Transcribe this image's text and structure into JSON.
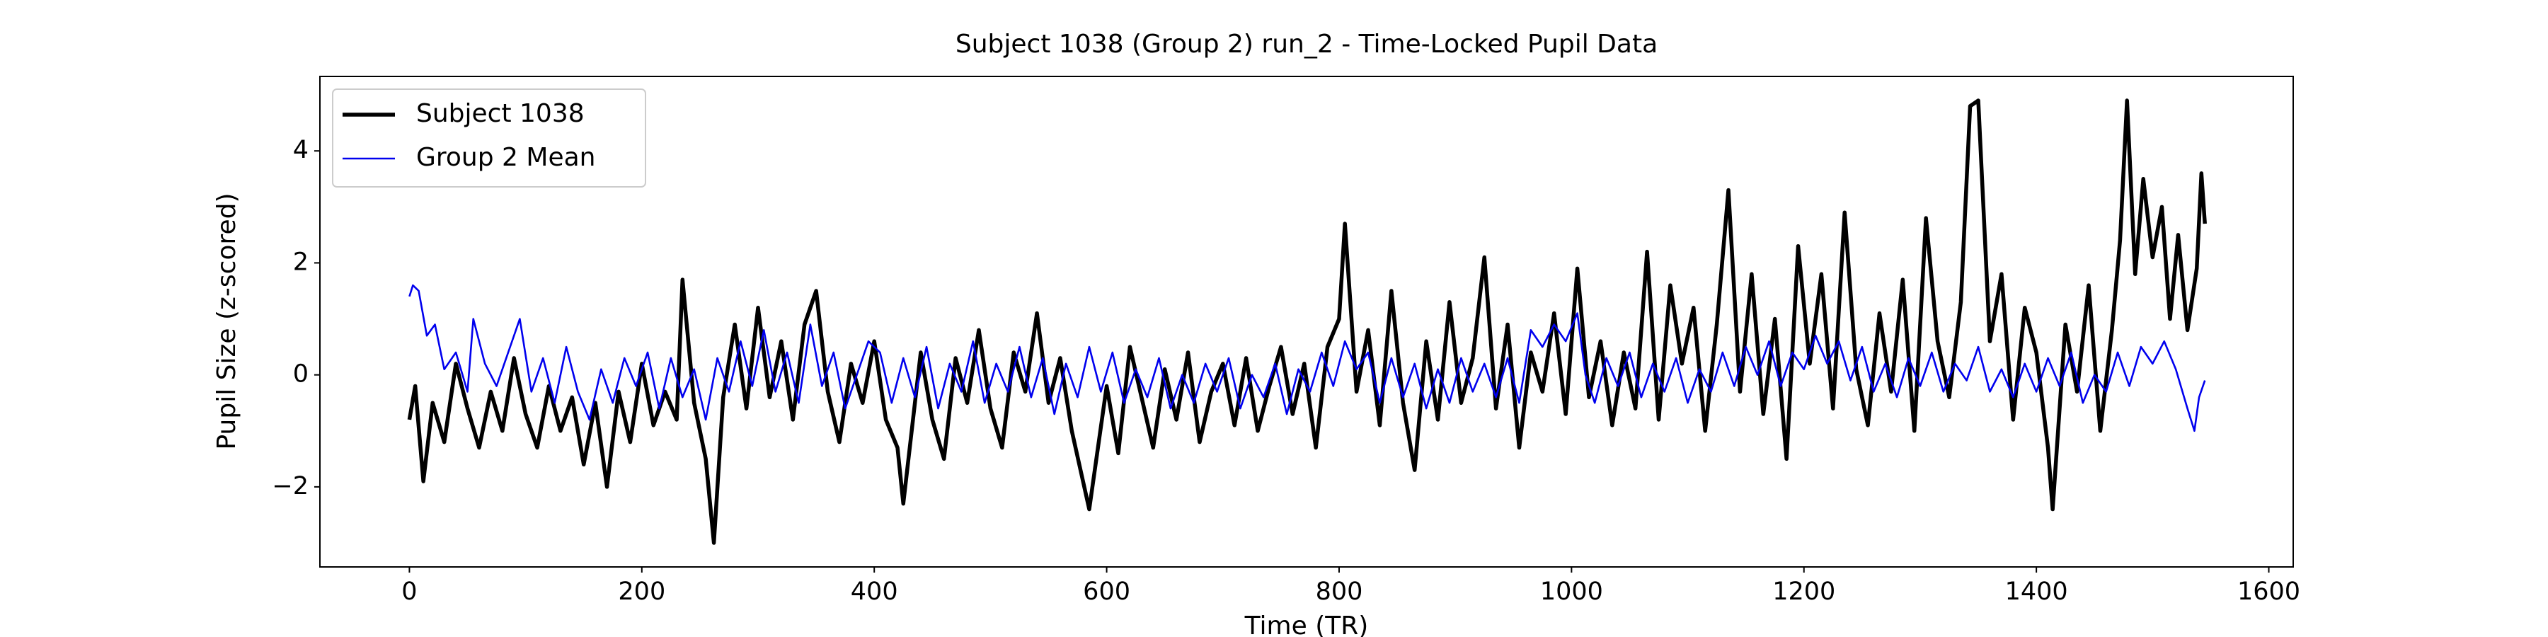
{
  "chart_data": {
    "type": "line",
    "title": "Subject 1038 (Group 2) run_2 - Time-Locked Pupil Data",
    "x_label": "Time (TR)",
    "y_label": "Pupil Size (z-scored)",
    "xlim": [
      -77,
      1621
    ],
    "ylim": [
      -3.43,
      5.33
    ],
    "xticks": [
      0,
      200,
      400,
      600,
      800,
      1000,
      1200,
      1400,
      1600
    ],
    "yticks": [
      {
        "value": -2,
        "label": "−2"
      },
      0,
      2,
      4
    ],
    "legend": "upper left",
    "series": [
      {
        "name": "Subject 1038",
        "color": "#000000",
        "x": [
          0,
          5,
          12,
          20,
          30,
          40,
          50,
          60,
          70,
          80,
          90,
          100,
          110,
          120,
          130,
          140,
          150,
          160,
          170,
          180,
          190,
          200,
          210,
          220,
          230,
          235,
          245,
          255,
          262,
          270,
          280,
          290,
          300,
          310,
          320,
          330,
          340,
          350,
          360,
          370,
          380,
          390,
          400,
          410,
          420,
          425,
          440,
          450,
          460,
          470,
          480,
          490,
          500,
          510,
          520,
          530,
          540,
          550,
          560,
          570,
          585,
          600,
          610,
          620,
          630,
          640,
          650,
          660,
          670,
          680,
          690,
          700,
          710,
          720,
          730,
          740,
          750,
          760,
          770,
          780,
          790,
          800,
          805,
          815,
          825,
          835,
          845,
          855,
          865,
          875,
          885,
          895,
          905,
          915,
          925,
          935,
          945,
          955,
          965,
          975,
          985,
          995,
          1005,
          1015,
          1025,
          1035,
          1045,
          1055,
          1065,
          1075,
          1085,
          1095,
          1105,
          1115,
          1125,
          1135,
          1145,
          1155,
          1165,
          1175,
          1185,
          1195,
          1205,
          1215,
          1225,
          1235,
          1245,
          1255,
          1265,
          1275,
          1285,
          1295,
          1305,
          1315,
          1325,
          1335,
          1343,
          1350,
          1360,
          1370,
          1380,
          1390,
          1400,
          1410,
          1414,
          1425,
          1435,
          1445,
          1455,
          1465,
          1472,
          1478,
          1485,
          1492,
          1500,
          1508,
          1515,
          1522,
          1530,
          1538,
          1542,
          1545
        ],
        "values": [
          -0.8,
          -0.2,
          -1.9,
          -0.5,
          -1.2,
          0.2,
          -0.6,
          -1.3,
          -0.3,
          -1.0,
          0.3,
          -0.7,
          -1.3,
          -0.2,
          -1.0,
          -0.4,
          -1.6,
          -0.5,
          -2.0,
          -0.3,
          -1.2,
          0.2,
          -0.9,
          -0.3,
          -0.8,
          1.7,
          -0.5,
          -1.5,
          -3.0,
          -0.4,
          0.9,
          -0.6,
          1.2,
          -0.4,
          0.6,
          -0.8,
          0.9,
          1.5,
          -0.3,
          -1.2,
          0.2,
          -0.5,
          0.6,
          -0.8,
          -1.3,
          -2.3,
          0.4,
          -0.8,
          -1.5,
          0.3,
          -0.5,
          0.8,
          -0.6,
          -1.3,
          0.4,
          -0.3,
          1.1,
          -0.5,
          0.3,
          -1.0,
          -2.4,
          -0.2,
          -1.4,
          0.5,
          -0.4,
          -1.3,
          0.1,
          -0.8,
          0.4,
          -1.2,
          -0.3,
          0.2,
          -0.9,
          0.3,
          -1.0,
          -0.2,
          0.5,
          -0.7,
          0.2,
          -1.3,
          0.5,
          1.0,
          2.7,
          -0.3,
          0.8,
          -0.9,
          1.5,
          -0.5,
          -1.7,
          0.6,
          -0.8,
          1.3,
          -0.5,
          0.3,
          2.1,
          -0.6,
          0.9,
          -1.3,
          0.4,
          -0.3,
          1.1,
          -0.7,
          1.9,
          -0.4,
          0.6,
          -0.9,
          0.4,
          -0.6,
          2.2,
          -0.8,
          1.6,
          0.2,
          1.2,
          -1.0,
          0.9,
          3.3,
          -0.3,
          1.8,
          -0.7,
          1.0,
          -1.5,
          2.3,
          0.2,
          1.8,
          -0.6,
          2.9,
          0.1,
          -0.9,
          1.1,
          -0.3,
          1.7,
          -1.0,
          2.8,
          0.6,
          -0.4,
          1.3,
          4.8,
          4.9,
          0.6,
          1.8,
          -0.8,
          1.2,
          0.4,
          -1.3,
          -2.4,
          0.9,
          -0.3,
          1.6,
          -1.0,
          0.8,
          2.4,
          4.9,
          1.8,
          3.5,
          2.1,
          3.0,
          1.0,
          2.5,
          0.8,
          1.9,
          3.6,
          2.7
        ]
      },
      {
        "name": "Group 2 Mean",
        "color": "#0000ee",
        "x": [
          0,
          3,
          8,
          15,
          22,
          30,
          40,
          50,
          55,
          65,
          75,
          85,
          95,
          105,
          115,
          125,
          135,
          145,
          155,
          165,
          175,
          185,
          195,
          205,
          215,
          225,
          235,
          245,
          255,
          265,
          275,
          285,
          295,
          305,
          315,
          325,
          335,
          345,
          355,
          365,
          375,
          385,
          395,
          405,
          415,
          425,
          435,
          445,
          455,
          465,
          475,
          485,
          495,
          505,
          515,
          525,
          535,
          545,
          555,
          565,
          575,
          585,
          595,
          605,
          615,
          625,
          635,
          645,
          655,
          665,
          675,
          685,
          695,
          705,
          715,
          725,
          735,
          745,
          755,
          765,
          775,
          785,
          795,
          805,
          815,
          825,
          835,
          845,
          855,
          865,
          875,
          885,
          895,
          905,
          915,
          925,
          935,
          945,
          955,
          965,
          975,
          985,
          995,
          1005,
          1012,
          1020,
          1030,
          1040,
          1050,
          1060,
          1070,
          1080,
          1090,
          1100,
          1110,
          1120,
          1130,
          1140,
          1150,
          1160,
          1170,
          1180,
          1190,
          1200,
          1210,
          1220,
          1230,
          1240,
          1250,
          1260,
          1270,
          1280,
          1290,
          1300,
          1310,
          1320,
          1330,
          1340,
          1350,
          1360,
          1370,
          1380,
          1390,
          1400,
          1410,
          1420,
          1430,
          1440,
          1450,
          1460,
          1470,
          1480,
          1490,
          1500,
          1510,
          1520,
          1530,
          1536,
          1540,
          1545
        ],
        "values": [
          1.4,
          1.6,
          1.5,
          0.7,
          0.9,
          0.1,
          0.4,
          -0.3,
          1.0,
          0.2,
          -0.2,
          0.4,
          1.0,
          -0.3,
          0.3,
          -0.5,
          0.5,
          -0.3,
          -0.8,
          0.1,
          -0.5,
          0.3,
          -0.2,
          0.4,
          -0.6,
          0.3,
          -0.4,
          0.1,
          -0.8,
          0.3,
          -0.3,
          0.6,
          -0.2,
          0.8,
          -0.3,
          0.4,
          -0.5,
          0.9,
          -0.2,
          0.4,
          -0.6,
          0.0,
          0.6,
          0.4,
          -0.5,
          0.3,
          -0.4,
          0.5,
          -0.6,
          0.2,
          -0.3,
          0.6,
          -0.5,
          0.2,
          -0.3,
          0.5,
          -0.4,
          0.3,
          -0.7,
          0.2,
          -0.4,
          0.5,
          -0.3,
          0.4,
          -0.5,
          0.1,
          -0.4,
          0.3,
          -0.6,
          0.0,
          -0.5,
          0.2,
          -0.3,
          0.3,
          -0.6,
          0.0,
          -0.4,
          0.2,
          -0.7,
          0.1,
          -0.3,
          0.4,
          -0.2,
          0.6,
          0.1,
          0.4,
          -0.5,
          0.3,
          -0.4,
          0.2,
          -0.6,
          0.1,
          -0.5,
          0.3,
          -0.3,
          0.2,
          -0.4,
          0.3,
          -0.5,
          0.8,
          0.5,
          0.9,
          0.6,
          1.1,
          0.0,
          -0.5,
          0.3,
          -0.2,
          0.4,
          -0.4,
          0.2,
          -0.3,
          0.3,
          -0.5,
          0.1,
          -0.3,
          0.4,
          -0.2,
          0.5,
          0.0,
          0.6,
          -0.2,
          0.4,
          0.1,
          0.7,
          0.2,
          0.6,
          -0.1,
          0.5,
          -0.3,
          0.2,
          -0.4,
          0.3,
          -0.2,
          0.4,
          -0.3,
          0.2,
          -0.1,
          0.5,
          -0.3,
          0.1,
          -0.4,
          0.2,
          -0.3,
          0.3,
          -0.2,
          0.4,
          -0.5,
          0.0,
          -0.3,
          0.4,
          -0.2,
          0.5,
          0.2,
          0.6,
          0.1,
          -0.6,
          -1.0,
          -0.4,
          -0.1
        ]
      }
    ]
  }
}
